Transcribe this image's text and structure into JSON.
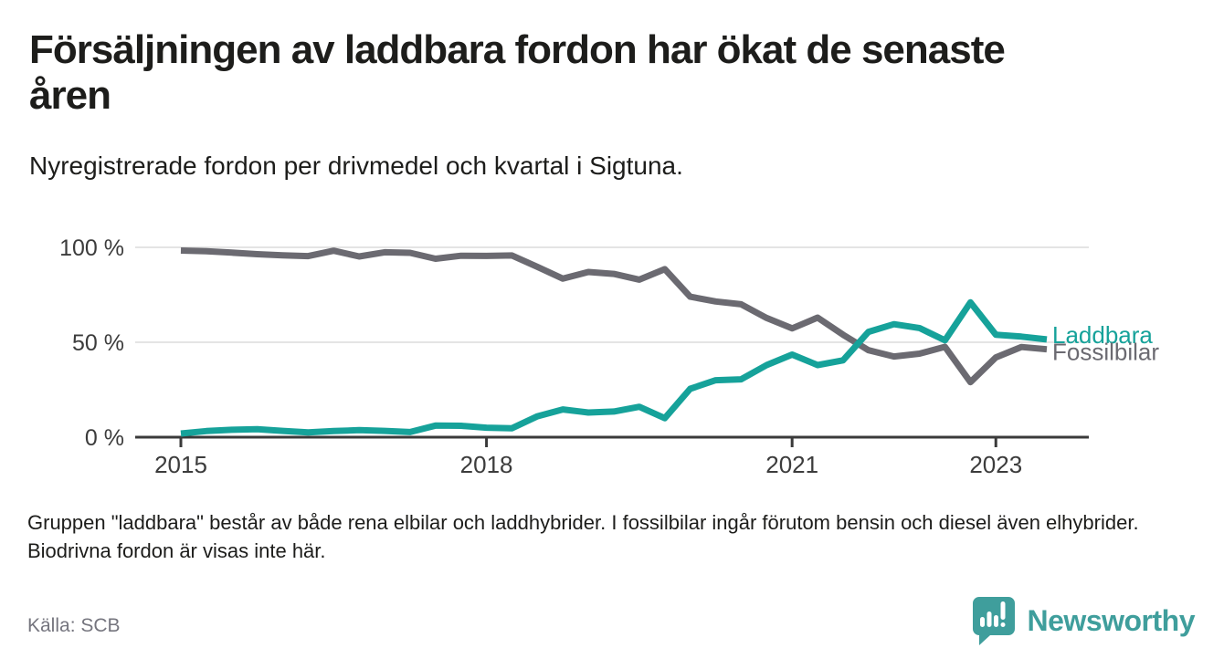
{
  "header": {
    "title": "Försäljningen av laddbara fordon har ökat de senaste åren",
    "subtitle": "Nyregistrerade fordon per drivmedel och kvartal i Sigtuna."
  },
  "chart_data": {
    "type": "line",
    "x_unit": "quarter",
    "categories": [
      "2015 Q1",
      "2015 Q2",
      "2015 Q3",
      "2015 Q4",
      "2016 Q1",
      "2016 Q2",
      "2016 Q3",
      "2016 Q4",
      "2017 Q1",
      "2017 Q2",
      "2017 Q3",
      "2017 Q4",
      "2018 Q1",
      "2018 Q2",
      "2018 Q3",
      "2018 Q4",
      "2019 Q1",
      "2019 Q2",
      "2019 Q3",
      "2019 Q4",
      "2020 Q1",
      "2020 Q2",
      "2020 Q3",
      "2020 Q4",
      "2021 Q1",
      "2021 Q2",
      "2021 Q3",
      "2021 Q4",
      "2022 Q1",
      "2022 Q2",
      "2022 Q3",
      "2022 Q4",
      "2023 Q1",
      "2023 Q2",
      "2023 Q3"
    ],
    "series": [
      {
        "name": "Laddbara",
        "color": "#16a29a",
        "values": [
          1.9,
          3.2,
          3.9,
          4.2,
          3.3,
          2.5,
          3.2,
          3.7,
          3.3,
          2.7,
          6.1,
          6.0,
          5.0,
          4.7,
          11.0,
          14.6,
          13.0,
          13.5,
          16.0,
          10.0,
          25.5,
          30.0,
          30.5,
          38.0,
          43.5,
          38.0,
          40.5,
          55.5,
          59.5,
          57.5,
          51.0,
          71.0,
          54.0,
          53.0,
          51.5
        ]
      },
      {
        "name": "Fossilbilar",
        "color": "#6b6a71",
        "values": [
          98.3,
          98.0,
          97.2,
          96.4,
          95.8,
          95.4,
          98.2,
          95.2,
          97.4,
          97.1,
          94.0,
          95.6,
          95.5,
          95.7,
          89.7,
          83.5,
          87.0,
          86.0,
          83.0,
          88.5,
          74.0,
          71.5,
          70.0,
          62.8,
          57.3,
          63.0,
          54.0,
          45.8,
          42.5,
          44.0,
          47.6,
          29.0,
          42.0,
          47.5,
          46.3
        ]
      }
    ],
    "ylim": [
      0,
      100
    ],
    "yticks": [
      {
        "value": 0,
        "label": "0 %"
      },
      {
        "value": 50,
        "label": "50 %"
      },
      {
        "value": 100,
        "label": "100 %"
      }
    ],
    "xticks": [
      {
        "index": 0,
        "label": "2015"
      },
      {
        "index": 12,
        "label": "2018"
      },
      {
        "index": 24,
        "label": "2021"
      },
      {
        "index": 32,
        "label": "2023"
      }
    ],
    "grid": "horizontal",
    "legend_position": "end-of-line-labels"
  },
  "footnote": {
    "text": "Gruppen \"laddbara\" består av både rena elbilar och laddhybrider. I fossilbilar ingår förutom bensin och diesel även elhybrider. Biodrivna fordon är visas inte här."
  },
  "footer": {
    "source": "Källa: SCB",
    "brand": "Newsworthy",
    "brand_color": "#3f9e9c",
    "logo_icon": "speech-bubble-bar-chart-icon"
  }
}
